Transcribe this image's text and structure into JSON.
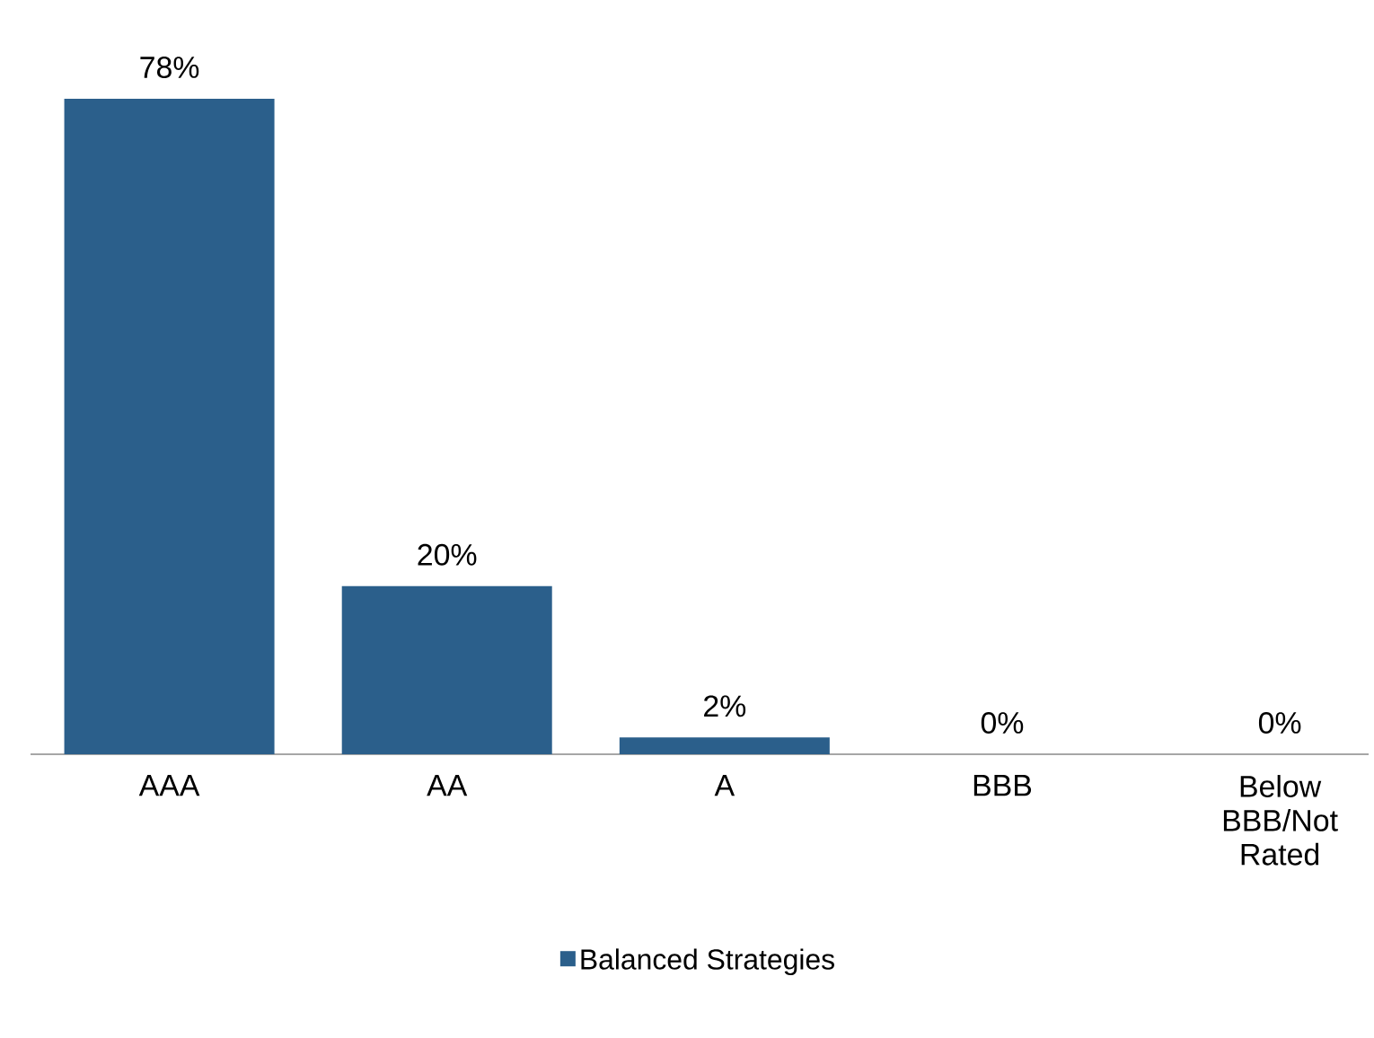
{
  "chart_data": {
    "type": "bar",
    "categories": [
      "AAA",
      "AA",
      "A",
      "BBB",
      "Below BBB/Not Rated"
    ],
    "series": [
      {
        "name": "Balanced Strategies",
        "color": "#2b5f8b",
        "values": [
          78,
          20,
          2,
          0,
          0
        ],
        "value_labels": [
          "78%",
          "20%",
          "2%",
          "0%",
          "0%"
        ]
      }
    ],
    "legend": "bottom"
  }
}
